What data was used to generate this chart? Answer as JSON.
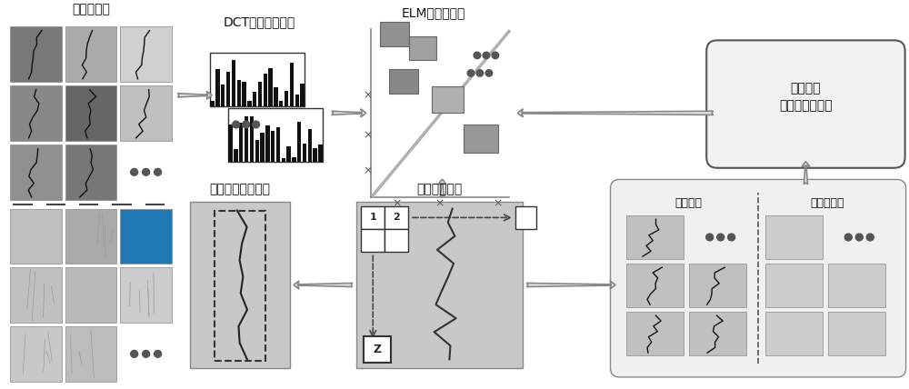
{
  "bg_color": "#ffffff",
  "labels": {
    "train_lib": "训练样本库",
    "dct": "DCT频域特征提取",
    "elm": "ELM检测分类器",
    "online_update": "在线更新\n裂缝区域检测器",
    "crack_result": "裂缝区域检测结果",
    "real_image": "实际采集图像",
    "crack_block": "裂缝块图",
    "non_crack_block": "非裂缝块图"
  },
  "font_size_title": 10,
  "font_size_label": 8,
  "figsize": [
    10.0,
    4.28
  ],
  "dpi": 100,
  "xlim": [
    0,
    10
  ],
  "ylim": [
    0,
    4.28
  ]
}
